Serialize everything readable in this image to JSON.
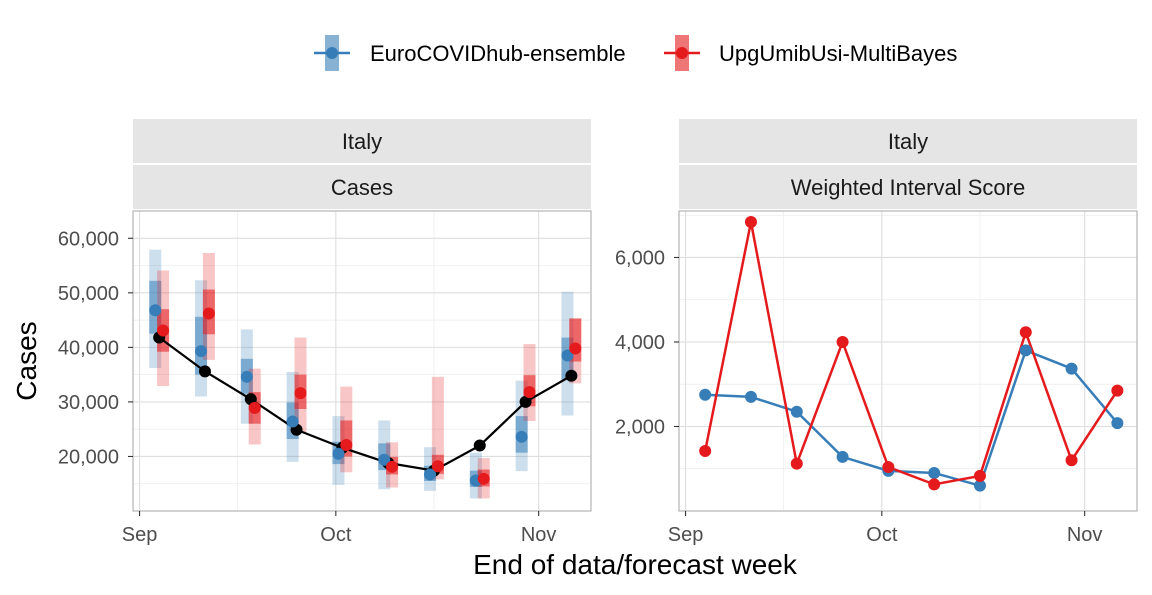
{
  "legend": {
    "items": [
      {
        "label": "EuroCOVIDhub-ensemble",
        "color": "#377EB8"
      },
      {
        "label": "UpgUmibUsi-MultiBayes",
        "color": "#E41A1C"
      }
    ]
  },
  "axes": {
    "xlabel": "End of data/forecast week",
    "ylabel": "Cases",
    "x_ticks": [
      "Sep",
      "Oct",
      "Nov"
    ]
  },
  "panels": [
    {
      "strip_top": "Italy",
      "strip_bottom": "Cases",
      "y_ticks": [
        "20,000",
        "30,000",
        "40,000",
        "50,000",
        "60,000"
      ]
    },
    {
      "strip_top": "Italy",
      "strip_bottom": "Weighted Interval Score",
      "y_ticks": [
        "2,000",
        "4,000",
        "6,000"
      ]
    }
  ],
  "chart_data": [
    {
      "type": "line",
      "title": "Italy — Cases",
      "x_axis_type": "date",
      "ylim": [
        10000,
        65000
      ],
      "y_ticks": [
        20000,
        30000,
        40000,
        50000,
        60000
      ],
      "observed": {
        "name": "",
        "color": "#000000",
        "x": [
          "2021-09-04",
          "2021-09-11",
          "2021-09-18",
          "2021-09-25",
          "2021-10-02",
          "2021-10-09",
          "2021-10-16",
          "2021-10-23",
          "2021-10-30",
          "2021-11-06"
        ],
        "y": [
          41800,
          35600,
          30500,
          24900,
          21600,
          18800,
          17400,
          22000,
          30000,
          34800
        ]
      },
      "series": [
        {
          "name": "EuroCOVIDhub-ensemble",
          "color": "#377EB8",
          "x": [
            "2021-09-04",
            "2021-09-11",
            "2021-09-18",
            "2021-09-25",
            "2021-10-02",
            "2021-10-09",
            "2021-10-16",
            "2021-10-23",
            "2021-10-30",
            "2021-11-06"
          ],
          "median": [
            46800,
            39300,
            34600,
            26400,
            20500,
            19400,
            16700,
            15600,
            23600,
            38500
          ],
          "inner_lower": [
            42500,
            35000,
            31500,
            23200,
            18600,
            17500,
            15500,
            14400,
            20700,
            34000
          ],
          "inner_upper": [
            52200,
            45600,
            37900,
            29900,
            22700,
            22400,
            18300,
            17400,
            27400,
            41800
          ],
          "outer_lower": [
            36200,
            31000,
            26000,
            19000,
            14800,
            14000,
            13700,
            12300,
            17300,
            27500
          ],
          "outer_upper": [
            57900,
            52300,
            43300,
            35500,
            27400,
            26600,
            21700,
            20700,
            33900,
            50200
          ]
        },
        {
          "name": "UpgUmibUsi-MultiBayes",
          "color": "#E41A1C",
          "x": [
            "2021-09-04",
            "2021-09-11",
            "2021-09-18",
            "2021-09-25",
            "2021-10-02",
            "2021-10-09",
            "2021-10-16",
            "2021-10-23",
            "2021-10-30",
            "2021-11-06"
          ],
          "median": [
            43100,
            46200,
            28900,
            31600,
            22100,
            18100,
            18200,
            15900,
            31800,
            39800
          ],
          "inner_lower": [
            39200,
            42400,
            26000,
            28700,
            20000,
            16700,
            16800,
            14500,
            29200,
            37400
          ],
          "inner_upper": [
            47000,
            50600,
            31800,
            35000,
            26600,
            19900,
            20300,
            17600,
            34900,
            45300
          ],
          "outer_lower": [
            32900,
            37700,
            22200,
            24500,
            17100,
            14300,
            15800,
            12300,
            26500,
            33400
          ],
          "outer_upper": [
            54100,
            57300,
            36100,
            41800,
            32800,
            22600,
            34600,
            19700,
            40600,
            45300
          ]
        }
      ]
    },
    {
      "type": "line",
      "title": "Italy — Weighted Interval Score",
      "x_axis_type": "date",
      "ylim": [
        0,
        7100
      ],
      "y_ticks": [
        2000,
        4000,
        6000
      ],
      "series": [
        {
          "name": "EuroCOVIDhub-ensemble",
          "color": "#377EB8",
          "x": [
            "2021-09-04",
            "2021-09-11",
            "2021-09-18",
            "2021-09-25",
            "2021-10-02",
            "2021-10-09",
            "2021-10-16",
            "2021-10-23",
            "2021-10-30",
            "2021-11-06"
          ],
          "y": [
            2750,
            2700,
            2350,
            1280,
            950,
            900,
            600,
            3800,
            3370,
            2080
          ]
        },
        {
          "name": "UpgUmibUsi-MultiBayes",
          "color": "#E41A1C",
          "x": [
            "2021-09-04",
            "2021-09-11",
            "2021-09-18",
            "2021-09-25",
            "2021-10-02",
            "2021-10-09",
            "2021-10-16",
            "2021-10-23",
            "2021-10-30",
            "2021-11-06"
          ],
          "y": [
            1420,
            6840,
            1120,
            4000,
            1040,
            630,
            830,
            4230,
            1200,
            2850
          ]
        }
      ]
    }
  ]
}
